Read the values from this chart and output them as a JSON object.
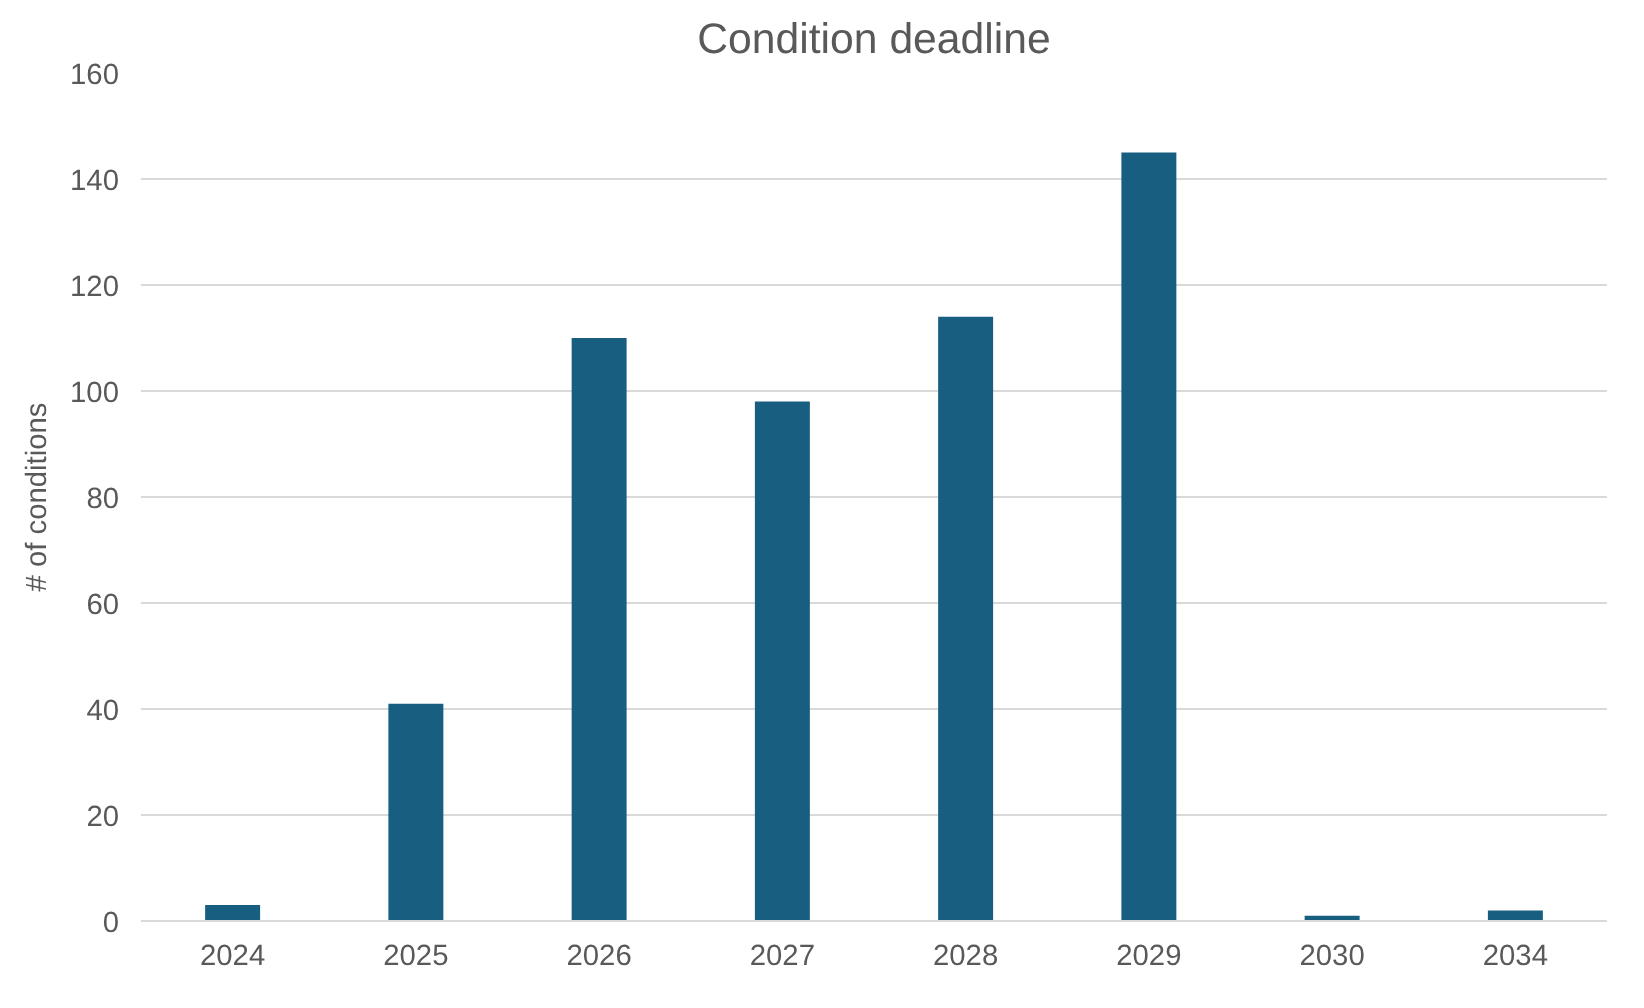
{
  "chart_data": {
    "type": "bar",
    "title": "Condition deadline",
    "ylabel": "# of conditions",
    "categories": [
      "2024",
      "2025",
      "2026",
      "2027",
      "2028",
      "2029",
      "2030",
      "2034"
    ],
    "values": [
      3,
      41,
      110,
      98,
      114,
      145,
      1,
      2
    ],
    "color": "#175e80",
    "ylim": [
      0,
      160
    ],
    "yticks": [
      0,
      20,
      40,
      60,
      80,
      100,
      120,
      140,
      160
    ],
    "grid": "y"
  }
}
